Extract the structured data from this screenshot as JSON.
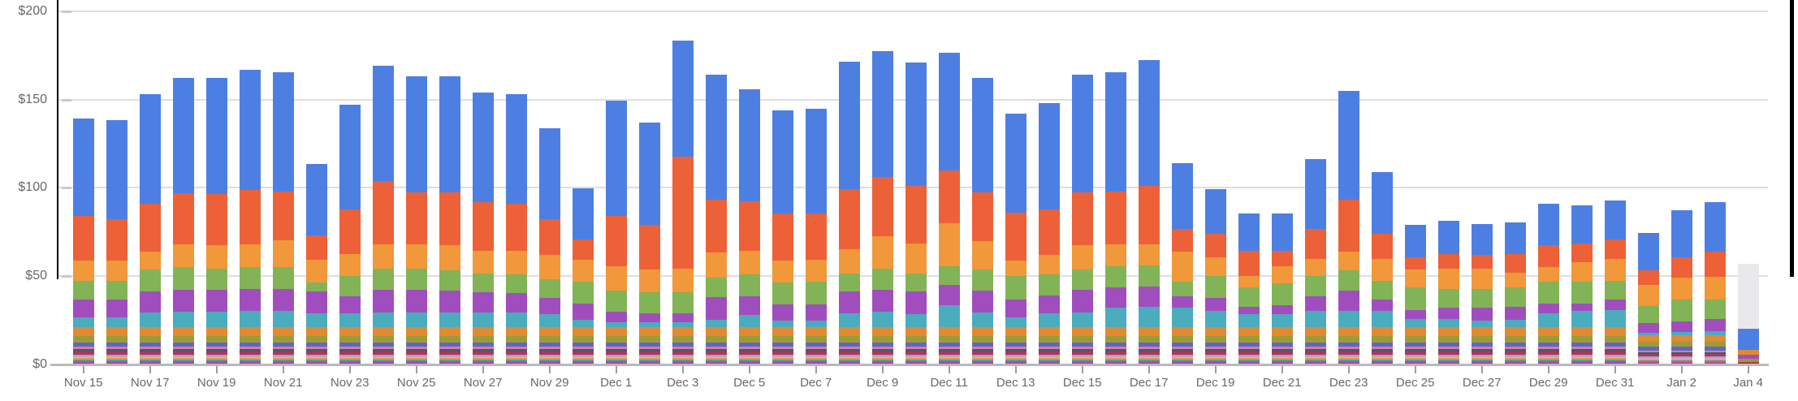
{
  "chart_data": {
    "type": "stacked-bar",
    "title": "",
    "xlabel": "",
    "ylabel": "",
    "y_axis": {
      "ticks": [
        {
          "label": "$0",
          "value": 0
        },
        {
          "label": "$50",
          "value": 50
        },
        {
          "label": "$100",
          "value": 100
        },
        {
          "label": "$150",
          "value": 150
        },
        {
          "label": "$200",
          "value": 200
        }
      ],
      "min": 0,
      "max": 200,
      "grid": true
    },
    "x_axis": {
      "tick_every": 2,
      "tick_labels": [
        "Nov 15",
        "Nov 17",
        "Nov 19",
        "Nov 21",
        "Nov 23",
        "Nov 25",
        "Nov 27",
        "Nov 29",
        "Dec 1",
        "Dec 3",
        "Dec 5",
        "Dec 7",
        "Dec 9",
        "Dec 11",
        "Dec 13",
        "Dec 15",
        "Dec 17",
        "Dec 19",
        "Dec 21",
        "Dec 23",
        "Dec 25",
        "Dec 27",
        "Dec 29",
        "Dec 31",
        "Jan 2",
        "Jan 4"
      ]
    },
    "categories": [
      "Nov 15",
      "Nov 16",
      "Nov 17",
      "Nov 18",
      "Nov 19",
      "Nov 20",
      "Nov 21",
      "Nov 22",
      "Nov 23",
      "Nov 24",
      "Nov 25",
      "Nov 26",
      "Nov 27",
      "Nov 28",
      "Nov 29",
      "Nov 30",
      "Dec 1",
      "Dec 2",
      "Dec 3",
      "Dec 4",
      "Dec 5",
      "Dec 6",
      "Dec 7",
      "Dec 8",
      "Dec 9",
      "Dec 10",
      "Dec 11",
      "Dec 12",
      "Dec 13",
      "Dec 14",
      "Dec 15",
      "Dec 16",
      "Dec 17",
      "Dec 18",
      "Dec 19",
      "Dec 20",
      "Dec 21",
      "Dec 22",
      "Dec 23",
      "Dec 24",
      "Dec 25",
      "Dec 26",
      "Dec 27",
      "Dec 28",
      "Dec 29",
      "Dec 30",
      "Dec 31",
      "Jan 1",
      "Jan 2",
      "Jan 3",
      "Jan 4"
    ],
    "base_stack": {
      "note": "thin constant stripes at bottom of every bar, bottom-to-top, values in dollars",
      "segments": [
        {
          "name": "stripe-violet",
          "color": "#8B4BC9",
          "value": 0.8
        },
        {
          "name": "stripe-magenta",
          "color": "#CD3D9D",
          "value": 1.1
        },
        {
          "name": "stripe-teal",
          "color": "#3AA7A3",
          "value": 0.9
        },
        {
          "name": "stripe-orange",
          "color": "#E89B44",
          "value": 0.9
        },
        {
          "name": "stripe-lightpink",
          "color": "#F19CB4",
          "value": 0.9
        },
        {
          "name": "stripe-skyblue",
          "color": "#69BBE8",
          "value": 0.9
        },
        {
          "name": "stripe-crimson",
          "color": "#BE2D5C",
          "value": 1.8
        },
        {
          "name": "stripe-darkteal",
          "color": "#2E6B5B",
          "value": 1.4
        },
        {
          "name": "stripe-pink",
          "color": "#EE6FA6",
          "value": 1.3
        },
        {
          "name": "stripe-indigo",
          "color": "#5A68C8",
          "value": 2.5
        },
        {
          "name": "stripe-olive",
          "color": "#9C9B38",
          "value": 3.5
        },
        {
          "name": "stripe-darkorange",
          "color": "#E08A33",
          "value": 5.0
        }
      ],
      "scale_default": 1,
      "scale_overrides": {
        "47": 0.8,
        "48": 0.8,
        "49": 0.8,
        "50": 0
      }
    },
    "series": [
      {
        "name": "series-teal",
        "color": "#4BACBE",
        "values": [
          5.5,
          5.5,
          8.5,
          9,
          9,
          9.5,
          9.5,
          8,
          8,
          8.5,
          8.5,
          8.5,
          8.5,
          8.5,
          7.5,
          4.5,
          3,
          3,
          3,
          4.5,
          7,
          4,
          4,
          8,
          9,
          7.5,
          12.5,
          8.5,
          5.5,
          8,
          8.5,
          11,
          11.5,
          11,
          9.5,
          7.5,
          7.5,
          9.5,
          9.5,
          9.5,
          5,
          5,
          4,
          4.5,
          8,
          9.5,
          10,
          1,
          1.5,
          2,
          0
        ]
      },
      {
        "name": "series-purple",
        "color": "#A04EBE",
        "values": [
          10.5,
          10.5,
          12,
          12.5,
          12.5,
          12.5,
          12.5,
          12.5,
          9.5,
          13,
          13,
          12.5,
          11.5,
          11,
          9,
          9,
          6,
          5,
          5,
          12.5,
          10.5,
          9,
          9,
          12.5,
          12.5,
          13,
          11.5,
          12.5,
          10.5,
          10,
          13,
          11.5,
          11.5,
          6.5,
          7,
          4,
          5,
          8,
          11.5,
          6.5,
          5,
          6,
          7,
          7,
          5.5,
          4,
          6,
          5.5,
          6,
          7,
          0
        ]
      },
      {
        "name": "series-green",
        "color": "#82B356",
        "values": [
          10.5,
          10.5,
          12.5,
          12.5,
          12,
          12,
          12,
          5,
          11.5,
          12,
          12,
          11.5,
          10.5,
          10.5,
          11,
          12.5,
          12,
          12,
          12,
          11,
          12.5,
          12.5,
          13,
          10,
          12,
          10,
          10.5,
          12,
          13,
          12,
          11.5,
          12,
          12,
          8.5,
          12.5,
          11,
          12.5,
          11.5,
          11.5,
          10.5,
          12.5,
          11,
          11,
          11,
          12.5,
          12.5,
          10.5,
          10,
          12.5,
          11,
          0
        ]
      },
      {
        "name": "series-orange",
        "color": "#F0983A",
        "values": [
          11.5,
          11.5,
          10,
          13,
          13,
          13,
          15.5,
          13,
          12.5,
          13.5,
          13.5,
          14,
          13,
          13.5,
          13.5,
          12.5,
          13.5,
          13,
          13.5,
          14.5,
          13.5,
          12.5,
          12.5,
          14,
          18,
          17,
          24.5,
          16,
          9,
          11,
          13.5,
          12.5,
          12,
          17,
          10.5,
          6.5,
          9.5,
          10,
          10.5,
          12.5,
          10.5,
          11.5,
          11.5,
          8.5,
          8,
          11,
          12.5,
          12,
          12.5,
          13,
          0
        ]
      },
      {
        "name": "series-red",
        "color": "#EC6137",
        "values": [
          25,
          23.5,
          27,
          29,
          29,
          31,
          27.5,
          13.5,
          25.5,
          36,
          29.5,
          30,
          27.5,
          26.5,
          20.5,
          11.5,
          28.5,
          25,
          63,
          30,
          28,
          26.5,
          26,
          34,
          33.5,
          32.5,
          30,
          27.5,
          27,
          26,
          30,
          30,
          33,
          13,
          13.5,
          14.5,
          9,
          17,
          29.5,
          14,
          6.5,
          8,
          7.5,
          10.5,
          12.5,
          10.5,
          11,
          8,
          11.5,
          14,
          0
        ]
      },
      {
        "name": "series-blue",
        "color": "#4D7FE3",
        "values": [
          55.5,
          56,
          62,
          65.5,
          66,
          68,
          67.5,
          40.5,
          59,
          65,
          65.5,
          65.5,
          62,
          62,
          51.5,
          29,
          65.5,
          58,
          66,
          70.5,
          63.5,
          58.5,
          59.5,
          72,
          71.5,
          70,
          66.5,
          65,
          56,
          60,
          66.5,
          67.5,
          71.5,
          37,
          25.5,
          21,
          21,
          39.5,
          61.5,
          35,
          18.5,
          19,
          17.5,
          18,
          23.5,
          21.5,
          22,
          21,
          26.5,
          28,
          0
        ]
      }
    ],
    "partial_day": {
      "category": "Jan 4",
      "index": 50,
      "forecast_bar": {
        "color": "#E9E9EC",
        "value": 57
      },
      "segments": [
        {
          "name": "seg-maroon",
          "color": "#A83A3F",
          "value": 1.5
        },
        {
          "name": "seg-olive",
          "color": "#9C9B38",
          "value": 1.7
        },
        {
          "name": "seg-purple",
          "color": "#A04EBE",
          "value": 2.2
        },
        {
          "name": "seg-darkorange",
          "color": "#E08A33",
          "value": 2.8
        },
        {
          "name": "seg-blue",
          "color": "#4D7FE3",
          "value": 12.2
        }
      ]
    },
    "colors": {
      "grid": "#DEDEE1",
      "axis": "#B7BABD",
      "tick": "#9A9EA2",
      "label_text": "#65686C",
      "forecast": "#E9E9EC",
      "edge_line": "#000000"
    }
  }
}
